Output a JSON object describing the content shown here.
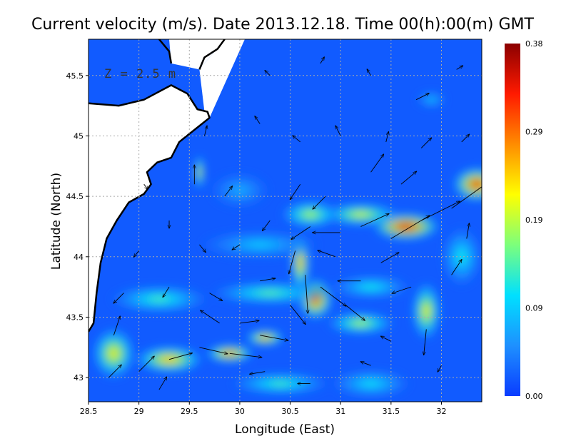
{
  "chart_data": {
    "type": "heatmap",
    "title": "Current velocity (m/s). Date 2013.12.18. Time 00(h):00(m) GMT",
    "xlabel": "Longitude (East)",
    "ylabel": "Latitude (North)",
    "annotation": "Z = 2.5 m",
    "xlim": [
      28.5,
      32.4
    ],
    "ylim": [
      42.8,
      45.8
    ],
    "x_ticks": [
      "28.5",
      "29",
      "29.5",
      "30",
      "30.5",
      "31",
      "31.5",
      "32"
    ],
    "y_ticks": [
      "43",
      "43.5",
      "44",
      "44.5",
      "45",
      "45.5"
    ],
    "grid": true,
    "colorbar": {
      "min": 0.0,
      "max": 0.38,
      "tick_labels": [
        "0.00",
        "0.09",
        "0.19",
        "0.29",
        "0.38"
      ],
      "colors": [
        "#0a3cff",
        "#1e90ff",
        "#00e0ff",
        "#7cff7c",
        "#ffff00",
        "#ff8c00",
        "#ff1a00",
        "#8b0000"
      ]
    },
    "colors": {
      "land": "#ffffff",
      "coastline": "#000000",
      "arrow": "#000000",
      "grid": "#aaaaaa"
    },
    "hotspots": [
      {
        "lon": 31.65,
        "lat": 44.25,
        "value": 0.36,
        "spread": [
          0.35,
          0.12
        ]
      },
      {
        "lon": 32.35,
        "lat": 44.6,
        "value": 0.34,
        "spread": [
          0.25,
          0.15
        ]
      },
      {
        "lon": 30.75,
        "lat": 43.65,
        "value": 0.33,
        "spread": [
          0.18,
          0.18
        ]
      },
      {
        "lon": 30.6,
        "lat": 43.95,
        "value": 0.28,
        "spread": [
          0.1,
          0.25
        ]
      },
      {
        "lon": 29.9,
        "lat": 43.2,
        "value": 0.31,
        "spread": [
          0.25,
          0.08
        ]
      },
      {
        "lon": 30.25,
        "lat": 43.33,
        "value": 0.3,
        "spread": [
          0.2,
          0.07
        ]
      },
      {
        "lon": 29.3,
        "lat": 43.15,
        "value": 0.27,
        "spread": [
          0.35,
          0.12
        ]
      },
      {
        "lon": 28.75,
        "lat": 43.2,
        "value": 0.24,
        "spread": [
          0.22,
          0.22
        ]
      },
      {
        "lon": 29.6,
        "lat": 44.7,
        "value": 0.25,
        "spread": [
          0.05,
          0.15
        ]
      },
      {
        "lon": 31.2,
        "lat": 44.35,
        "value": 0.22,
        "spread": [
          0.4,
          0.1
        ]
      },
      {
        "lon": 30.7,
        "lat": 44.35,
        "value": 0.2,
        "spread": [
          0.3,
          0.12
        ]
      },
      {
        "lon": 31.85,
        "lat": 43.55,
        "value": 0.24,
        "spread": [
          0.15,
          0.25
        ]
      },
      {
        "lon": 31.2,
        "lat": 43.45,
        "value": 0.2,
        "spread": [
          0.35,
          0.1
        ]
      },
      {
        "lon": 30.3,
        "lat": 43.7,
        "value": 0.16,
        "spread": [
          0.6,
          0.1
        ]
      },
      {
        "lon": 29.2,
        "lat": 43.65,
        "value": 0.15,
        "spread": [
          0.5,
          0.12
        ]
      },
      {
        "lon": 30.2,
        "lat": 44.1,
        "value": 0.1,
        "spread": [
          0.6,
          0.12
        ]
      },
      {
        "lon": 31.3,
        "lat": 43.75,
        "value": 0.13,
        "spread": [
          0.4,
          0.1
        ]
      },
      {
        "lon": 32.2,
        "lat": 44.0,
        "value": 0.13,
        "spread": [
          0.2,
          0.25
        ]
      },
      {
        "lon": 30.4,
        "lat": 42.95,
        "value": 0.15,
        "spread": [
          0.5,
          0.1
        ]
      },
      {
        "lon": 31.3,
        "lat": 42.95,
        "value": 0.12,
        "spread": [
          0.4,
          0.12
        ]
      },
      {
        "lon": 31.9,
        "lat": 45.3,
        "value": 0.1,
        "spread": [
          0.15,
          0.07
        ]
      },
      {
        "lon": 30.0,
        "lat": 44.55,
        "value": 0.08,
        "spread": [
          0.3,
          0.15
        ]
      }
    ],
    "vectors": [
      {
        "lon": 31.5,
        "lat": 44.15,
        "u": 0.3,
        "v": 0.18
      },
      {
        "lon": 31.8,
        "lat": 44.3,
        "u": 0.3,
        "v": 0.15
      },
      {
        "lon": 32.1,
        "lat": 44.4,
        "u": 0.28,
        "v": 0.2
      },
      {
        "lon": 31.2,
        "lat": 44.25,
        "u": 0.22,
        "v": 0.1
      },
      {
        "lon": 31.0,
        "lat": 44.2,
        "u": -0.22,
        "v": 0.0
      },
      {
        "lon": 30.7,
        "lat": 44.25,
        "u": -0.15,
        "v": -0.1
      },
      {
        "lon": 30.55,
        "lat": 44.05,
        "u": -0.05,
        "v": -0.18
      },
      {
        "lon": 30.65,
        "lat": 43.85,
        "u": 0.02,
        "v": -0.3
      },
      {
        "lon": 30.8,
        "lat": 43.75,
        "u": 0.2,
        "v": -0.15
      },
      {
        "lon": 31.05,
        "lat": 43.6,
        "u": 0.15,
        "v": -0.12
      },
      {
        "lon": 30.5,
        "lat": 43.6,
        "u": 0.12,
        "v": -0.15
      },
      {
        "lon": 30.2,
        "lat": 43.35,
        "u": 0.22,
        "v": -0.04
      },
      {
        "lon": 29.9,
        "lat": 43.2,
        "u": 0.25,
        "v": -0.03
      },
      {
        "lon": 29.6,
        "lat": 43.25,
        "u": 0.22,
        "v": -0.05
      },
      {
        "lon": 29.3,
        "lat": 43.15,
        "u": 0.18,
        "v": 0.05
      },
      {
        "lon": 29.0,
        "lat": 43.05,
        "u": 0.12,
        "v": 0.12
      },
      {
        "lon": 28.75,
        "lat": 43.35,
        "u": 0.05,
        "v": 0.15
      },
      {
        "lon": 28.7,
        "lat": 43.0,
        "u": 0.1,
        "v": 0.1
      },
      {
        "lon": 30.0,
        "lat": 43.45,
        "u": 0.15,
        "v": 0.02
      },
      {
        "lon": 29.8,
        "lat": 43.45,
        "u": -0.15,
        "v": 0.1
      },
      {
        "lon": 30.25,
        "lat": 43.05,
        "u": -0.12,
        "v": -0.02
      },
      {
        "lon": 30.7,
        "lat": 42.95,
        "u": -0.1,
        "v": 0.0
      },
      {
        "lon": 31.3,
        "lat": 43.1,
        "u": -0.08,
        "v": 0.03
      },
      {
        "lon": 31.85,
        "lat": 43.4,
        "u": -0.02,
        "v": -0.2
      },
      {
        "lon": 31.7,
        "lat": 43.75,
        "u": -0.15,
        "v": -0.05
      },
      {
        "lon": 31.2,
        "lat": 43.8,
        "u": -0.18,
        "v": 0.0
      },
      {
        "lon": 32.1,
        "lat": 43.85,
        "u": 0.08,
        "v": 0.12
      },
      {
        "lon": 32.25,
        "lat": 44.15,
        "u": 0.02,
        "v": 0.12
      },
      {
        "lon": 31.6,
        "lat": 44.6,
        "u": 0.12,
        "v": 0.1
      },
      {
        "lon": 31.3,
        "lat": 44.7,
        "u": 0.1,
        "v": 0.14
      },
      {
        "lon": 30.85,
        "lat": 44.5,
        "u": -0.1,
        "v": -0.1
      },
      {
        "lon": 30.6,
        "lat": 44.6,
        "u": -0.08,
        "v": -0.12
      },
      {
        "lon": 30.3,
        "lat": 44.3,
        "u": -0.06,
        "v": -0.08
      },
      {
        "lon": 30.0,
        "lat": 44.1,
        "u": -0.06,
        "v": -0.04
      },
      {
        "lon": 29.6,
        "lat": 44.1,
        "u": 0.05,
        "v": -0.06
      },
      {
        "lon": 29.3,
        "lat": 44.3,
        "u": 0.0,
        "v": -0.06
      },
      {
        "lon": 29.0,
        "lat": 44.05,
        "u": -0.04,
        "v": -0.05
      },
      {
        "lon": 28.85,
        "lat": 43.7,
        "u": -0.08,
        "v": -0.08
      },
      {
        "lon": 29.3,
        "lat": 43.75,
        "u": -0.05,
        "v": -0.08
      },
      {
        "lon": 29.7,
        "lat": 43.7,
        "u": 0.1,
        "v": -0.06
      },
      {
        "lon": 30.2,
        "lat": 43.8,
        "u": 0.12,
        "v": 0.02
      },
      {
        "lon": 29.85,
        "lat": 44.5,
        "u": 0.06,
        "v": 0.08
      },
      {
        "lon": 29.55,
        "lat": 44.6,
        "u": 0.0,
        "v": 0.15
      },
      {
        "lon": 29.65,
        "lat": 45.0,
        "u": 0.02,
        "v": 0.08
      },
      {
        "lon": 30.2,
        "lat": 45.1,
        "u": -0.04,
        "v": 0.06
      },
      {
        "lon": 30.6,
        "lat": 44.95,
        "u": -0.06,
        "v": 0.05
      },
      {
        "lon": 31.0,
        "lat": 45.0,
        "u": -0.04,
        "v": 0.08
      },
      {
        "lon": 31.45,
        "lat": 44.95,
        "u": 0.02,
        "v": 0.08
      },
      {
        "lon": 31.8,
        "lat": 44.9,
        "u": 0.08,
        "v": 0.08
      },
      {
        "lon": 32.2,
        "lat": 44.95,
        "u": 0.06,
        "v": 0.06
      },
      {
        "lon": 31.75,
        "lat": 45.3,
        "u": 0.1,
        "v": 0.05
      },
      {
        "lon": 31.3,
        "lat": 45.5,
        "u": -0.03,
        "v": 0.05
      },
      {
        "lon": 30.8,
        "lat": 45.6,
        "u": 0.03,
        "v": 0.05
      },
      {
        "lon": 30.3,
        "lat": 45.5,
        "u": -0.04,
        "v": 0.04
      },
      {
        "lon": 32.15,
        "lat": 45.55,
        "u": 0.05,
        "v": 0.03
      },
      {
        "lon": 29.05,
        "lat": 44.6,
        "u": 0.03,
        "v": -0.04
      },
      {
        "lon": 30.95,
        "lat": 44.0,
        "u": -0.14,
        "v": 0.05
      },
      {
        "lon": 31.4,
        "lat": 43.95,
        "u": 0.14,
        "v": 0.08
      },
      {
        "lon": 31.5,
        "lat": 43.3,
        "u": -0.08,
        "v": 0.04
      },
      {
        "lon": 32.0,
        "lat": 43.1,
        "u": -0.03,
        "v": -0.05
      },
      {
        "lon": 29.2,
        "lat": 42.9,
        "u": 0.06,
        "v": 0.1
      }
    ],
    "coastline": [
      [
        [
          28.5,
          43.38
        ],
        [
          28.55,
          43.45
        ],
        [
          28.58,
          43.7
        ],
        [
          28.62,
          43.95
        ],
        [
          28.68,
          44.15
        ],
        [
          28.78,
          44.3
        ],
        [
          28.9,
          44.45
        ],
        [
          29.05,
          44.52
        ],
        [
          29.12,
          44.6
        ],
        [
          29.08,
          44.7
        ],
        [
          29.18,
          44.78
        ],
        [
          29.32,
          44.82
        ],
        [
          29.4,
          44.95
        ],
        [
          29.55,
          45.05
        ],
        [
          29.7,
          45.15
        ],
        [
          29.68,
          45.2
        ],
        [
          29.58,
          45.22
        ],
        [
          29.48,
          45.35
        ],
        [
          29.32,
          45.42
        ],
        [
          29.05,
          45.3
        ],
        [
          28.8,
          45.25
        ],
        [
          28.5,
          45.27
        ]
      ],
      [
        [
          29.6,
          45.55
        ],
        [
          29.65,
          45.65
        ],
        [
          29.78,
          45.72
        ],
        [
          29.85,
          45.8
        ]
      ],
      [
        [
          29.2,
          45.8
        ],
        [
          29.3,
          45.7
        ],
        [
          29.32,
          45.6
        ]
      ]
    ]
  }
}
